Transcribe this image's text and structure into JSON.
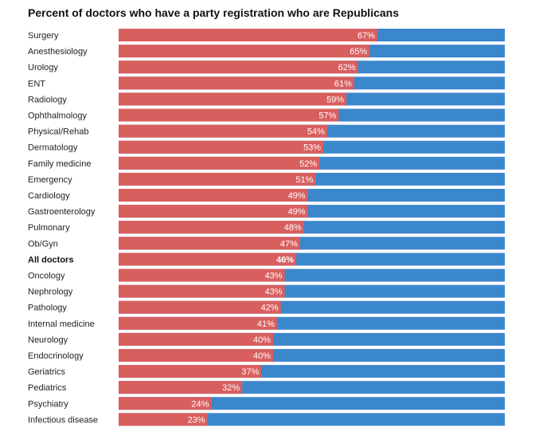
{
  "title": "Percent of doctors who have a party registration who are Republicans",
  "chart_data": {
    "type": "bar",
    "orientation": "horizontal",
    "stacked": true,
    "title": "Percent of doctors who have a party registration who are Republicans",
    "xlim": [
      0,
      100
    ],
    "categories": [
      "Surgery",
      "Anesthesiology",
      "Urology",
      "ENT",
      "Radiology",
      "Ophthalmology",
      "Physical/Rehab",
      "Dermatology",
      "Family medicine",
      "Emergency",
      "Cardiology",
      "Gastroenterology",
      "Pulmonary",
      "Ob/Gyn",
      "All doctors",
      "Oncology",
      "Nephrology",
      "Pathology",
      "Internal medicine",
      "Neurology",
      "Endocrinology",
      "Geriatrics",
      "Pediatrics",
      "Psychiatry",
      "Infectious disease"
    ],
    "values": [
      67,
      65,
      62,
      61,
      59,
      57,
      54,
      53,
      52,
      51,
      49,
      49,
      48,
      47,
      46,
      43,
      43,
      42,
      41,
      40,
      40,
      37,
      32,
      24,
      23
    ],
    "value_labels": [
      "67%",
      "65%",
      "62%",
      "61%",
      "59%",
      "57%",
      "54%",
      "53%",
      "52%",
      "51%",
      "49%",
      "49%",
      "48%",
      "47%",
      "46%",
      "43%",
      "43%",
      "42%",
      "41%",
      "40%",
      "40%",
      "37%",
      "32%",
      "24%",
      "23%"
    ],
    "highlight_category": "All doctors",
    "colors": {
      "republican": "#d95f5f",
      "remainder": "#3b87cc"
    },
    "grid": false,
    "legend": "none"
  }
}
